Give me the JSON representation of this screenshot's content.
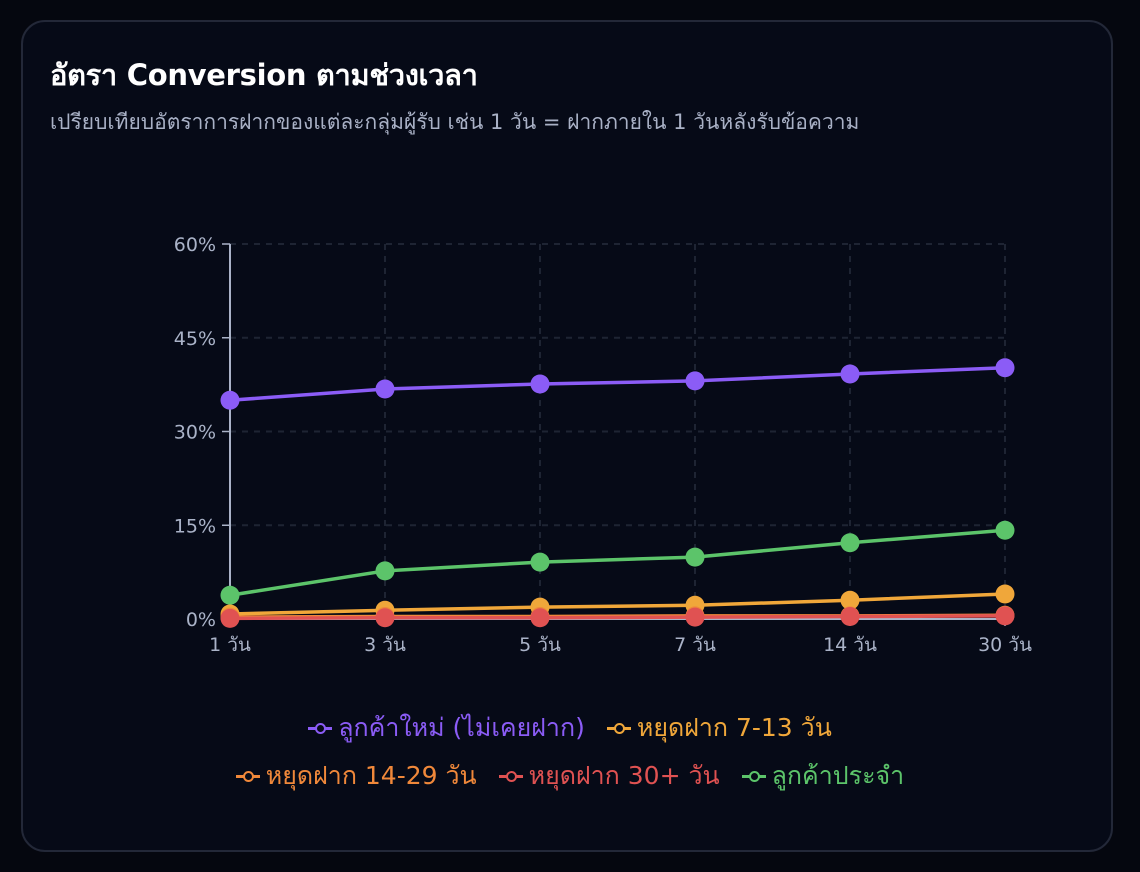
{
  "card": {
    "title": "อัตรา Conversion ตามช่วงเวลา",
    "subtitle": "เปรียบเทียบอัตราการฝากของแต่ละกลุ่มผู้รับ เช่น 1 วัน = ฝากภายใน 1 วันหลังรับข้อความ"
  },
  "colors": {
    "background": "#05070f",
    "card": "#060a17",
    "grid": "#1e2433",
    "axis": "#aab3c8"
  },
  "chart_data": {
    "type": "line",
    "title": "อัตรา Conversion ตามช่วงเวลา",
    "subtitle": "เปรียบเทียบอัตราการฝากของแต่ละกลุ่มผู้รับ เช่น 1 วัน = ฝากภายใน 1 วันหลังรับข้อความ",
    "xlabel": "",
    "ylabel": "",
    "categories": [
      "1 วัน",
      "3 วัน",
      "5 วัน",
      "7 วัน",
      "14 วัน",
      "30 วัน"
    ],
    "yticks": [
      "0%",
      "15%",
      "30%",
      "45%",
      "60%"
    ],
    "ylim": [
      0,
      60
    ],
    "grid": true,
    "legend_position": "bottom",
    "series": [
      {
        "name": "ลูกค้าใหม่ (ไม่เคยฝาก)",
        "color": "#8b5cf6",
        "values": [
          35.0,
          36.8,
          37.6,
          38.1,
          39.2,
          40.2
        ]
      },
      {
        "name": "หยุดฝาก 7-13 วัน",
        "color": "#f0a73a",
        "values": [
          0.8,
          1.4,
          1.9,
          2.2,
          3.0,
          4.0
        ]
      },
      {
        "name": "หยุดฝาก 14-29 วัน",
        "color": "#f0883a",
        "values": [
          0.3,
          0.4,
          0.4,
          0.5,
          0.5,
          0.6
        ]
      },
      {
        "name": "หยุดฝาก 30+ วัน",
        "color": "#e05252",
        "values": [
          0.1,
          0.2,
          0.2,
          0.3,
          0.4,
          0.5
        ]
      },
      {
        "name": "ลูกค้าประจำ",
        "color": "#5cc46a",
        "values": [
          3.8,
          7.7,
          9.1,
          9.9,
          12.2,
          14.2
        ]
      }
    ]
  }
}
